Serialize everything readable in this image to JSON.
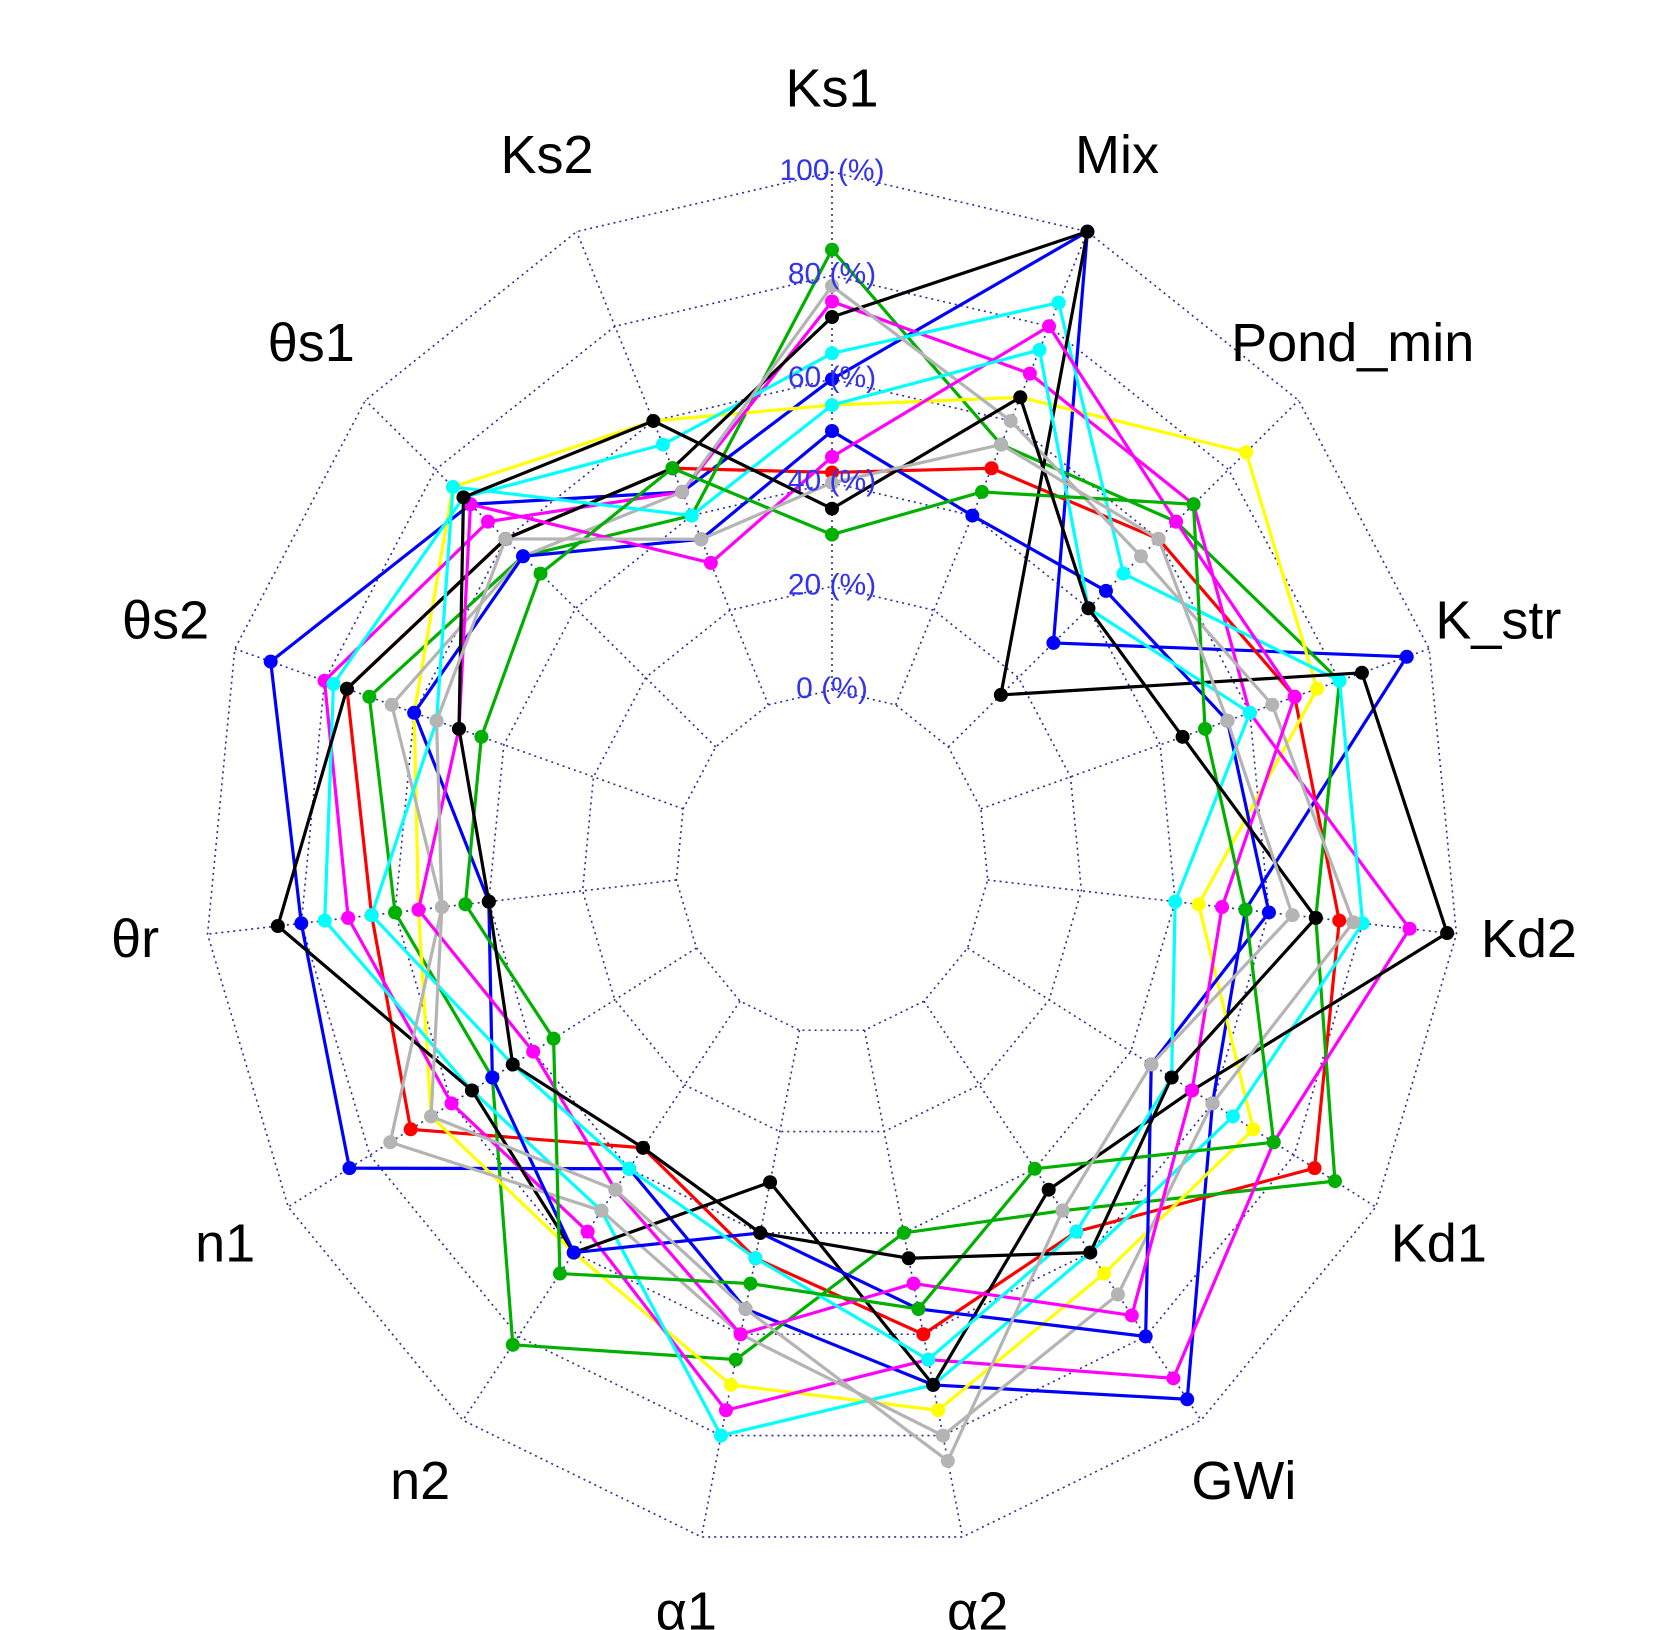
{
  "chart_data": {
    "type": "radar",
    "categories": [
      "Ks1",
      "Mix",
      "Pond_min",
      "K_str",
      "Kd2",
      "Kd1",
      "GWi",
      "α2",
      "α1",
      "n2",
      "n1",
      "θr",
      "θs2",
      "θs1",
      "Ks2"
    ],
    "ylim": [
      0,
      100
    ],
    "yticks": [
      {
        "value": 0,
        "label": "0 (%)"
      },
      {
        "value": 20,
        "label": "20 (%)"
      },
      {
        "value": 40,
        "label": "40 (%)"
      },
      {
        "value": 60,
        "label": "60 (%)"
      },
      {
        "value": 80,
        "label": "80 (%)"
      },
      {
        "value": 100,
        "label": "100 (%)"
      }
    ],
    "grid": true,
    "series": [
      {
        "color": "#0000ff",
        "values": [
          60,
          100,
          30,
          95,
          55,
          60,
          95,
          70,
          55,
          40,
          85,
          80,
          92,
          70,
          45
        ]
      },
      {
        "color": "#ff0000",
        "values": [
          42,
          50,
          60,
          70,
          75,
          85,
          55,
          60,
          45,
          35,
          70,
          65,
          75,
          60,
          50
        ]
      },
      {
        "color": "#00b000",
        "values": [
          85,
          55,
          65,
          80,
          70,
          90,
          50,
          40,
          65,
          82,
          50,
          60,
          70,
          55,
          40
        ]
      },
      {
        "color": "#ffff00",
        "values": [
          55,
          65,
          85,
          75,
          45,
          70,
          65,
          75,
          70,
          60,
          65,
          55,
          60,
          75,
          60
        ]
      },
      {
        "color": "#ff00ff",
        "values": [
          75,
          70,
          70,
          60,
          90,
          75,
          90,
          65,
          75,
          55,
          60,
          70,
          80,
          65,
          45
        ]
      },
      {
        "color": "#00ffff",
        "values": [
          65,
          85,
          50,
          80,
          80,
          65,
          60,
          70,
          80,
          50,
          55,
          75,
          78,
          72,
          55
        ]
      },
      {
        "color": "#000000",
        "values": [
          72,
          100,
          15,
          85,
          98,
          55,
          45,
          70,
          30,
          60,
          55,
          85,
          75,
          60,
          50
        ]
      },
      {
        "color": "#b4b4b4",
        "values": [
          78,
          60,
          55,
          65,
          78,
          60,
          70,
          80,
          60,
          50,
          75,
          50,
          65,
          55,
          45
        ]
      },
      {
        "color": "#0000ff",
        "values": [
          50,
          40,
          45,
          55,
          60,
          45,
          80,
          55,
          40,
          60,
          50,
          40,
          60,
          55,
          35
        ]
      },
      {
        "color": "#ff00ff",
        "values": [
          45,
          80,
          65,
          70,
          50,
          55,
          75,
          50,
          60,
          45,
          40,
          55,
          50,
          70,
          30
        ]
      },
      {
        "color": "#00ffff",
        "values": [
          55,
          75,
          40,
          60,
          40,
          50,
          55,
          65,
          45,
          40,
          45,
          65,
          55,
          75,
          40
        ]
      },
      {
        "color": "#00b000",
        "values": [
          30,
          45,
          70,
          50,
          55,
          75,
          40,
          55,
          50,
          65,
          35,
          45,
          45,
          50,
          50
        ]
      },
      {
        "color": "#000000",
        "values": [
          35,
          65,
          40,
          45,
          70,
          50,
          60,
          45,
          40,
          35,
          45,
          40,
          50,
          72,
          60
        ]
      },
      {
        "color": "#b4b4b4",
        "values": [
          40,
          55,
          60,
          55,
          65,
          45,
          50,
          85,
          55,
          45,
          65,
          50,
          55,
          60,
          35
        ]
      }
    ]
  }
}
